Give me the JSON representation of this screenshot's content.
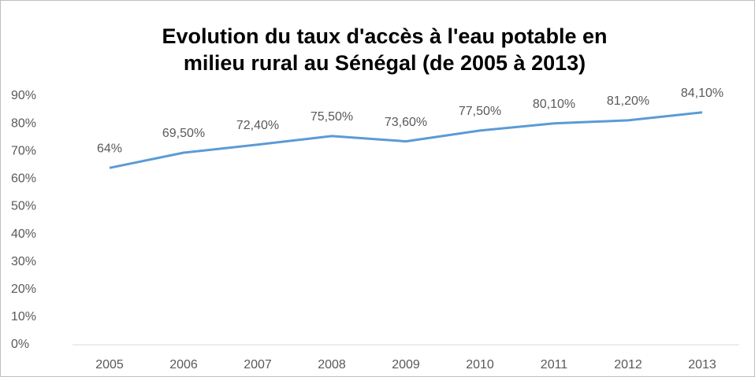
{
  "chart_data": {
    "type": "line",
    "title": [
      "Evolution du taux d'accès à l'eau potable en",
      "milieu rural au Sénégal (de 2005 à 2013)"
    ],
    "categories": [
      "2005",
      "2006",
      "2007",
      "2008",
      "2009",
      "2010",
      "2011",
      "2012",
      "2013"
    ],
    "values": [
      64,
      69.5,
      72.4,
      75.5,
      73.6,
      77.5,
      80.1,
      81.2,
      84.1
    ],
    "value_labels": [
      "64%",
      "69,50%",
      "72,40%",
      "75,50%",
      "73,60%",
      "77,50%",
      "80,10%",
      "81,20%",
      "84,10%"
    ],
    "color": "#5b9bd5",
    "ylim": [
      0,
      90
    ],
    "yticks": [
      {
        "value": 0,
        "label": "0%"
      },
      {
        "value": 10,
        "label": "10%"
      },
      {
        "value": 20,
        "label": "20%"
      },
      {
        "value": 30,
        "label": "30%"
      },
      {
        "value": 40,
        "label": "40%"
      },
      {
        "value": 50,
        "label": "50%"
      },
      {
        "value": 60,
        "label": "60%"
      },
      {
        "value": 70,
        "label": "70%"
      },
      {
        "value": 80,
        "label": "80%"
      },
      {
        "value": 90,
        "label": "90%"
      }
    ],
    "grid": false
  }
}
